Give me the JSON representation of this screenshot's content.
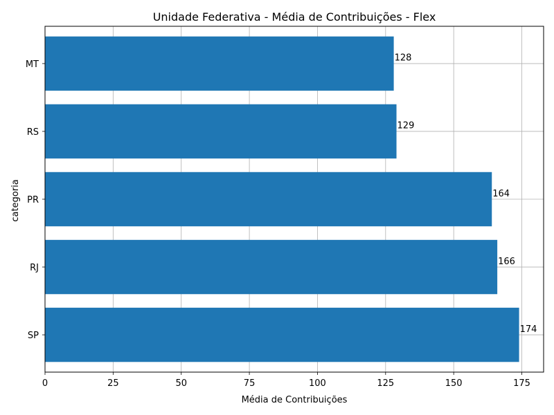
{
  "chart_data": {
    "type": "bar",
    "orientation": "horizontal",
    "title": "Unidade Federativa - Média de Contribuições - Flex",
    "xlabel": "Média de Contribuições",
    "ylabel": "categoria",
    "categories": [
      "SP",
      "RJ",
      "PR",
      "RS",
      "MT"
    ],
    "values": [
      174,
      166,
      164,
      129,
      128
    ],
    "data_labels": [
      "174",
      "166",
      "164",
      "129",
      "128"
    ],
    "xlim": [
      0,
      183
    ],
    "xticks": [
      0,
      25,
      50,
      75,
      100,
      125,
      150,
      175
    ],
    "xtick_labels": [
      "0",
      "25",
      "50",
      "75",
      "100",
      "125",
      "150",
      "175"
    ],
    "grid": true,
    "bar_color": "#1f77b4",
    "grid_color": "#b0b0b0"
  }
}
